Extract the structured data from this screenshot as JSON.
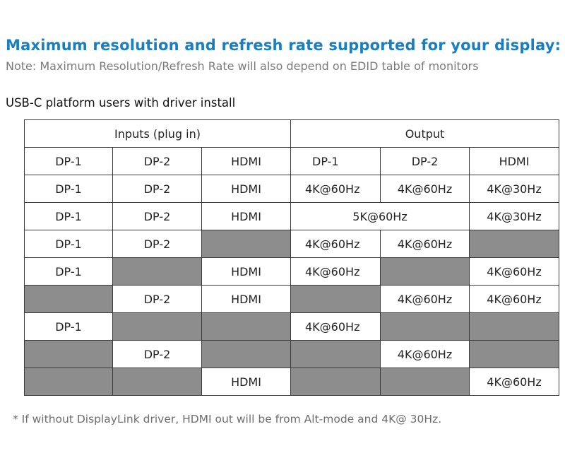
{
  "title": "Maximum resolution and refresh rate supported for your display:",
  "note": "Note: Maximum Resolution/Refresh Rate will also depend on EDID table of monitors",
  "subtitle": "USB-C platform users with driver install",
  "table": {
    "group_headers": [
      "Inputs (plug in)",
      "Output"
    ],
    "column_headers": [
      "DP-1",
      "DP-2",
      "HDMI",
      "DP-1",
      "DP-2",
      "HDMI"
    ],
    "rows": [
      {
        "in_dp1": "DP-1",
        "in_dp2": "DP-2",
        "in_hdmi": "HDMI",
        "out_dp1": "4K@60Hz",
        "out_dp2": "4K@60Hz",
        "out_hdmi": "4K@30Hz"
      },
      {
        "in_dp1": "DP-1",
        "in_dp2": "DP-2",
        "in_hdmi": "HDMI",
        "out_merged": "5K@60Hz",
        "out_hdmi": "4K@30Hz"
      },
      {
        "in_dp1": "DP-1",
        "in_dp2": "DP-2",
        "in_hdmi": "",
        "out_dp1": "4K@60Hz",
        "out_dp2": "4K@60Hz",
        "out_hdmi": ""
      },
      {
        "in_dp1": "DP-1",
        "in_dp2": "",
        "in_hdmi": "HDMI",
        "out_dp1": "4K@60Hz",
        "out_dp2": "",
        "out_hdmi": "4K@60Hz"
      },
      {
        "in_dp1": "",
        "in_dp2": "DP-2",
        "in_hdmi": "HDMI",
        "out_dp1": "",
        "out_dp2": "4K@60Hz",
        "out_hdmi": "4K@60Hz"
      },
      {
        "in_dp1": "DP-1",
        "in_dp2": "",
        "in_hdmi": "",
        "out_dp1": "4K@60Hz",
        "out_dp2": "",
        "out_hdmi": ""
      },
      {
        "in_dp1": "",
        "in_dp2": "DP-2",
        "in_hdmi": "",
        "out_dp1": "",
        "out_dp2": "4K@60Hz",
        "out_hdmi": ""
      },
      {
        "in_dp1": "",
        "in_dp2": "",
        "in_hdmi": "HDMI",
        "out_dp1": "",
        "out_dp2": "",
        "out_hdmi": "4K@60Hz"
      }
    ],
    "empty_cell_color": "#8d8d8d"
  },
  "footnote": "* If without DisplayLink driver, HDMI out will be from Alt-mode and 4K@ 30Hz.",
  "colors": {
    "title": "#1a7fc1",
    "note": "#7a7a7a",
    "border": "#3a3a3a"
  }
}
